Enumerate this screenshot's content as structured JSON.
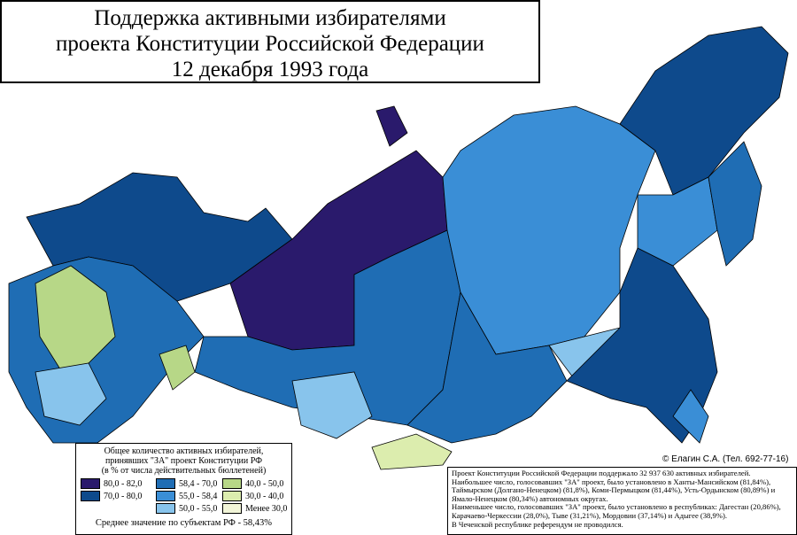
{
  "header": {
    "title_lines": [
      "Поддержка активными избирателями",
      "проекта Конституции Российской Федерации",
      "12 декабря 1993 года"
    ]
  },
  "legend": {
    "title_lines": [
      "Общее количество активных избирателей,",
      "принявших \"ЗА\" проект Конституции РФ",
      "(в % от числа действительных бюллетеней)"
    ],
    "items": [
      {
        "label": "80,0 - 82,0",
        "color": "#2a1a6c"
      },
      {
        "label": "70,0 - 80,0",
        "color": "#0e4a8c"
      },
      {
        "label": "58,4 - 70,0",
        "color": "#1f6db4"
      },
      {
        "label": "55,0 - 58,4",
        "color": "#3a8ed6"
      },
      {
        "label": "50,0 - 55,0",
        "color": "#88c4ec"
      },
      {
        "label": "40,0 - 50,0",
        "color": "#b7d787"
      },
      {
        "label": "30,0 - 40,0",
        "color": "#dcedae"
      },
      {
        "label": "Менее 30,0",
        "color": "#f2f5d8"
      }
    ],
    "average": "Среднее значение по субъектам РФ - 58,43%"
  },
  "copyright": "© Елагин С.А. (Тел. 692-77-16)",
  "notes": [
    "Проект Конституции Российской Федерации поддержало 32 937 630 активных избирателей.",
    "Наибольшее число, голосовавших \"ЗА\" проект, было установлено в Ханты-Мансийском (81,84%),",
    "Таймырском (Долгано-Ненецком) (81,8%), Коми-Пермыцком (81,44%), Усть-Ордынском (80,89%) и",
    "Ямало-Ненецком (80,34%) автономных округах.",
    "Наименьшее число, голосовавших \"ЗА\" проект, было установлено в республиках: Дагестан (20,86%),",
    "Карачаево-Черкессии (28,0%), Тыве (31,21%), Мордовии (37,14%) и Адыгее (38,9%).",
    "В Чеченской республике референдум не проводился."
  ]
}
